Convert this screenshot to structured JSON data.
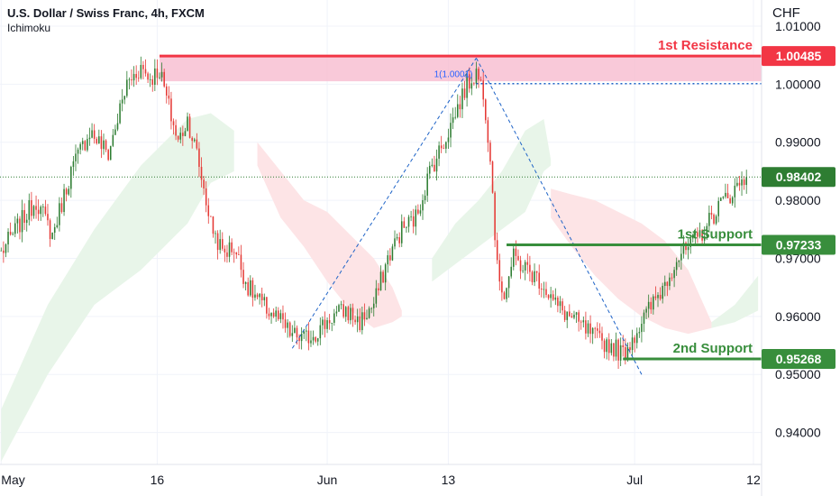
{
  "header": {
    "title": "U.S. Dollar / Swiss Franc, 4h, FXCM",
    "indicator": "Ichimoku",
    "currency": "CHF"
  },
  "chart_data": {
    "type": "candlestick",
    "ylim": [
      0.9345,
      1.0145
    ],
    "y_ticks": [
      {
        "value": 0.94,
        "label": "0.94000"
      },
      {
        "value": 0.95,
        "label": "0.95000"
      },
      {
        "value": 0.96,
        "label": "0.96000"
      },
      {
        "value": 0.97,
        "label": "0.97000"
      },
      {
        "value": 0.98,
        "label": "0.98000"
      },
      {
        "value": 0.99,
        "label": "0.99000"
      },
      {
        "value": 1.0,
        "label": "1.00000"
      },
      {
        "value": 1.01,
        "label": "1.01000"
      }
    ],
    "x_ticks": [
      {
        "label": "May",
        "index": 0
      },
      {
        "label": "16",
        "index": 67
      },
      {
        "label": "Jun",
        "index": 140
      },
      {
        "label": "13",
        "index": 192
      },
      {
        "label": "Jul",
        "index": 272
      },
      {
        "label": "12",
        "index": 323
      }
    ],
    "price_path": [
      [
        0,
        0.971
      ],
      [
        8,
        0.976
      ],
      [
        15,
        0.98
      ],
      [
        22,
        0.974
      ],
      [
        30,
        0.985
      ],
      [
        38,
        0.992
      ],
      [
        46,
        0.988
      ],
      [
        54,
        1.0
      ],
      [
        60,
        1.003
      ],
      [
        64,
        1.001
      ],
      [
        68,
        1.0025
      ],
      [
        72,
        0.996
      ],
      [
        76,
        0.99
      ],
      [
        80,
        0.994
      ],
      [
        84,
        0.988
      ],
      [
        90,
        0.976
      ],
      [
        95,
        0.971
      ],
      [
        100,
        0.972
      ],
      [
        106,
        0.965
      ],
      [
        112,
        0.962
      ],
      [
        118,
        0.96
      ],
      [
        124,
        0.957
      ],
      [
        130,
        0.956
      ],
      [
        136,
        0.9575
      ],
      [
        142,
        0.96
      ],
      [
        148,
        0.961
      ],
      [
        154,
        0.959
      ],
      [
        160,
        0.962
      ],
      [
        166,
        0.97
      ],
      [
        172,
        0.975
      ],
      [
        178,
        0.977
      ],
      [
        184,
        0.985
      ],
      [
        190,
        0.99
      ],
      [
        196,
        0.996
      ],
      [
        200,
        1.0
      ],
      [
        204,
        1.002
      ],
      [
        207,
        0.999
      ],
      [
        210,
        0.988
      ],
      [
        213,
        0.968
      ],
      [
        216,
        0.964
      ],
      [
        220,
        0.97
      ],
      [
        226,
        0.968
      ],
      [
        232,
        0.966
      ],
      [
        238,
        0.962
      ],
      [
        244,
        0.96
      ],
      [
        250,
        0.958
      ],
      [
        256,
        0.956
      ],
      [
        262,
        0.955
      ],
      [
        267,
        0.9535
      ],
      [
        272,
        0.957
      ],
      [
        278,
        0.961
      ],
      [
        284,
        0.965
      ],
      [
        290,
        0.97
      ],
      [
        296,
        0.972
      ],
      [
        302,
        0.975
      ],
      [
        308,
        0.979
      ],
      [
        314,
        0.9815
      ],
      [
        320,
        0.984
      ]
    ],
    "current_price": {
      "value": 0.98402,
      "label": "0.98402"
    },
    "levels": [
      {
        "name": "1st Resistance",
        "value": 1.00485,
        "label": "1.00485",
        "color": "#f23645",
        "start_index": 68
      },
      {
        "name": "1st Support",
        "value": 0.97233,
        "label": "0.97233",
        "color": "#388e3c",
        "start_index": 217
      },
      {
        "name": "2nd Support",
        "value": 0.95268,
        "label": "0.95268",
        "color": "#388e3c",
        "start_index": 267
      }
    ],
    "resistance_zone": {
      "top": 1.00485,
      "bottom": 1.0005,
      "color": "#f8bbd0"
    },
    "fib": {
      "label": "1(1.0001)",
      "level": 1.0001,
      "from_index": 204,
      "start": {
        "index": 125,
        "value": 0.9545
      },
      "peak": {
        "index": 204,
        "value": 1.0045
      },
      "end": {
        "index": 275,
        "value": 0.95
      }
    },
    "ichimoku": {
      "green": [
        [
          [
            0,
            0.935,
            0.944
          ],
          [
            20,
            0.95,
            0.962
          ],
          [
            40,
            0.962,
            0.975
          ],
          [
            60,
            0.968,
            0.986
          ],
          [
            80,
            0.976,
            0.994
          ],
          [
            90,
            0.983,
            0.995
          ],
          [
            100,
            0.985,
            0.992
          ]
        ],
        [
          [
            185,
            0.966,
            0.97
          ],
          [
            195,
            0.969,
            0.976
          ],
          [
            205,
            0.972,
            0.98
          ],
          [
            215,
            0.975,
            0.985
          ],
          [
            225,
            0.978,
            0.992
          ],
          [
            233,
            0.985,
            0.994
          ],
          [
            236,
            0.986,
            0.987
          ]
        ],
        [
          [
            305,
            0.958,
            0.959
          ],
          [
            315,
            0.959,
            0.962
          ],
          [
            325,
            0.961,
            0.967
          ]
        ]
      ],
      "red": [
        [
          [
            110,
            0.986,
            0.99
          ],
          [
            120,
            0.977,
            0.985
          ],
          [
            130,
            0.972,
            0.98
          ],
          [
            140,
            0.966,
            0.978
          ],
          [
            150,
            0.961,
            0.974
          ],
          [
            160,
            0.958,
            0.97
          ],
          [
            168,
            0.959,
            0.965
          ],
          [
            172,
            0.96,
            0.961
          ]
        ],
        [
          [
            236,
            0.977,
            0.982
          ],
          [
            245,
            0.972,
            0.981
          ],
          [
            255,
            0.967,
            0.98
          ],
          [
            265,
            0.963,
            0.978
          ],
          [
            275,
            0.96,
            0.976
          ],
          [
            285,
            0.958,
            0.973
          ],
          [
            295,
            0.957,
            0.968
          ],
          [
            305,
            0.958,
            0.959
          ]
        ]
      ]
    },
    "colors": {
      "bull": "#089981",
      "bull_body": "#2e7d32",
      "bear": "#e53935",
      "grid": "#f0f3fa",
      "axis_text": "#131722",
      "green_cloud": "#e8f5e9",
      "red_cloud": "#fde4e6",
      "fib_line": "#1e63c7",
      "fib_label": "#2962ff"
    }
  }
}
